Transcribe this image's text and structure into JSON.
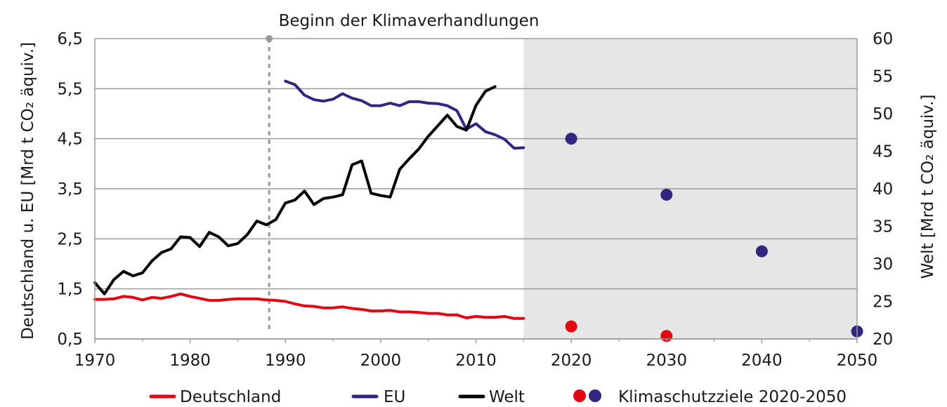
{
  "chart_data": {
    "type": "line",
    "annotation": "Beginn der Klimaverhandlungen",
    "annotation_x": 1988.3,
    "ylabel_left": "Deutschland u. EU [Mrd t CO₂ äquiv.]",
    "ylabel_right": "Welt [Mrd t CO₂ äquiv.]",
    "xlim": [
      1970,
      2050
    ],
    "ylim_left": [
      0.5,
      6.5
    ],
    "ylim_right": [
      20,
      60
    ],
    "xticks": [
      1970,
      1980,
      1990,
      2000,
      2010,
      2020,
      2030,
      2040,
      2050
    ],
    "yticks_left": [
      "0,5",
      "1,5",
      "2,5",
      "3,5",
      "4,5",
      "5,5",
      "6,5"
    ],
    "yticks_left_values": [
      0.5,
      1.5,
      2.5,
      3.5,
      4.5,
      5.5,
      6.5
    ],
    "yticks_right": [
      "20",
      "25",
      "30",
      "35",
      "40",
      "45",
      "50",
      "55",
      "60"
    ],
    "yticks_right_values": [
      20,
      25,
      30,
      35,
      40,
      45,
      50,
      55,
      60
    ],
    "shaded_region": [
      2015,
      2050
    ],
    "colors": {
      "deutschland": "#e30613",
      "eu": "#312783",
      "welt": "#000000",
      "shade": "#e6e6e6",
      "grid": "#9a9a9a",
      "annotation_line": "#999999"
    },
    "series": [
      {
        "name": "Deutschland",
        "axis": "left",
        "color": "#e30613",
        "x": [
          1970,
          1971,
          1972,
          1973,
          1974,
          1975,
          1976,
          1977,
          1978,
          1979,
          1980,
          1981,
          1982,
          1983,
          1984,
          1985,
          1986,
          1987,
          1988,
          1989,
          1990,
          1991,
          1992,
          1993,
          1994,
          1995,
          1996,
          1997,
          1998,
          1999,
          2000,
          2001,
          2002,
          2003,
          2004,
          2005,
          2006,
          2007,
          2008,
          2009,
          2010,
          2011,
          2012,
          2013,
          2014,
          2015
        ],
        "values": [
          1.29,
          1.29,
          1.3,
          1.35,
          1.33,
          1.28,
          1.33,
          1.31,
          1.35,
          1.4,
          1.35,
          1.31,
          1.27,
          1.27,
          1.29,
          1.3,
          1.3,
          1.3,
          1.28,
          1.27,
          1.25,
          1.2,
          1.16,
          1.15,
          1.12,
          1.12,
          1.14,
          1.11,
          1.09,
          1.06,
          1.06,
          1.07,
          1.04,
          1.04,
          1.03,
          1.01,
          1.01,
          0.98,
          0.98,
          0.92,
          0.95,
          0.93,
          0.93,
          0.95,
          0.91,
          0.91
        ]
      },
      {
        "name": "EU",
        "axis": "left",
        "color": "#312783",
        "x": [
          1990,
          1991,
          1992,
          1993,
          1994,
          1995,
          1996,
          1997,
          1998,
          1999,
          2000,
          2001,
          2002,
          2003,
          2004,
          2005,
          2006,
          2007,
          2008,
          2009,
          2010,
          2011,
          2012,
          2013,
          2014,
          2015
        ],
        "values": [
          5.65,
          5.58,
          5.37,
          5.28,
          5.25,
          5.29,
          5.4,
          5.31,
          5.26,
          5.16,
          5.16,
          5.21,
          5.16,
          5.24,
          5.24,
          5.21,
          5.2,
          5.16,
          5.06,
          4.69,
          4.8,
          4.64,
          4.58,
          4.49,
          4.31,
          4.32
        ]
      },
      {
        "name": "Welt",
        "axis": "right",
        "color": "#000000",
        "x": [
          1970,
          1971,
          1972,
          1973,
          1974,
          1975,
          1976,
          1977,
          1978,
          1979,
          1980,
          1981,
          1982,
          1983,
          1984,
          1985,
          1986,
          1987,
          1988,
          1989,
          1990,
          1991,
          1992,
          1993,
          1994,
          1995,
          1996,
          1997,
          1998,
          1999,
          2000,
          2001,
          2002,
          2003,
          2004,
          2005,
          2006,
          2007,
          2008,
          2009,
          2010,
          2011,
          2012
        ],
        "values": [
          27.5,
          26.0,
          27.9,
          29.0,
          28.4,
          28.8,
          30.4,
          31.5,
          32.0,
          33.6,
          33.5,
          32.3,
          34.2,
          33.6,
          32.4,
          32.7,
          33.9,
          35.7,
          35.2,
          35.9,
          38.1,
          38.5,
          39.7,
          37.9,
          38.7,
          38.9,
          39.2,
          43.2,
          43.7,
          39.4,
          39.1,
          38.9,
          42.6,
          44.0,
          45.3,
          47.0,
          48.4,
          49.8,
          48.3,
          47.8,
          51.1,
          53.0,
          53.6
        ]
      }
    ],
    "targets": [
      {
        "series": "EU",
        "color": "#312783",
        "x": [
          2020,
          2030,
          2040,
          2050
        ],
        "values": [
          4.5,
          3.38,
          2.25,
          0.65
        ]
      },
      {
        "series": "Deutschland",
        "color": "#e30613",
        "x": [
          2020,
          2030
        ],
        "values": [
          0.75,
          0.56
        ]
      }
    ],
    "legend": {
      "position": "bottom",
      "items": [
        {
          "label": "Deutschland",
          "type": "line",
          "colors": [
            "#e30613"
          ]
        },
        {
          "label": "EU",
          "type": "line",
          "colors": [
            "#312783"
          ]
        },
        {
          "label": "Welt",
          "type": "line",
          "colors": [
            "#000000"
          ]
        },
        {
          "label": "Klimaschutzziele 2020-2050",
          "type": "dots",
          "colors": [
            "#e30613",
            "#312783"
          ]
        }
      ]
    }
  }
}
